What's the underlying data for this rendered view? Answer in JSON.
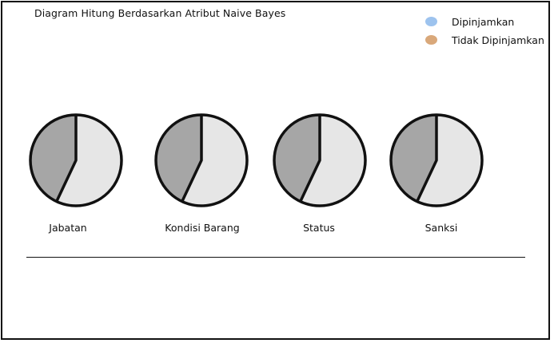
{
  "title": "Diagram Hitung Berdasarkan Atribut Naive Bayes",
  "legend": [
    {
      "label": "Dipinjamkan",
      "color": "#9dc3ee"
    },
    {
      "label": "Tidak Dipinjamkan",
      "color": "#d9a87a"
    }
  ],
  "pie_colors": {
    "dark": "#a6a6a6",
    "light": "#e6e6e6",
    "stroke": "#111111"
  },
  "pies": [
    {
      "label": "Jabatan",
      "dark_fraction": 0.43
    },
    {
      "label": "Kondisi Barang",
      "dark_fraction": 0.43
    },
    {
      "label": "Status",
      "dark_fraction": 0.43
    },
    {
      "label": "Sanksi",
      "dark_fraction": 0.43
    }
  ]
}
